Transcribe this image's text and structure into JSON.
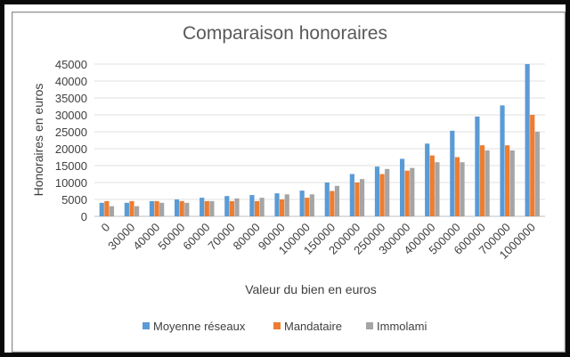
{
  "chart_data": {
    "type": "bar",
    "title": "Comparaison honoraires",
    "xlabel": "Valeur du bien en euros",
    "ylabel": "Honoraires en euros",
    "ylim": [
      0,
      45000
    ],
    "yticks": [
      0,
      5000,
      10000,
      15000,
      20000,
      25000,
      30000,
      35000,
      40000,
      45000
    ],
    "grid": true,
    "legend_position": "bottom",
    "categories": [
      "0",
      "30000",
      "40000",
      "50000",
      "60000",
      "70000",
      "80000",
      "90000",
      "100000",
      "150000",
      "200000",
      "250000",
      "300000",
      "400000",
      "500000",
      "600000",
      "700000",
      "1000000"
    ],
    "series": [
      {
        "name": "Moyenne réseaux",
        "color": "#5B9BD5",
        "values": [
          4000,
          4000,
          4500,
          5000,
          5500,
          6000,
          6300,
          6800,
          7600,
          10000,
          12500,
          14700,
          17000,
          21500,
          25300,
          29500,
          32800,
          45000
        ]
      },
      {
        "name": "Mandataire",
        "color": "#ED7D31",
        "values": [
          4500,
          4500,
          4500,
          4500,
          4500,
          4500,
          4500,
          5000,
          5500,
          7500,
          10000,
          12500,
          13500,
          18000,
          17500,
          21000,
          21000,
          30000
        ]
      },
      {
        "name": "Immolami",
        "color": "#A5A5A5",
        "values": [
          3000,
          3000,
          4000,
          4000,
          4500,
          5300,
          5500,
          6500,
          6500,
          9000,
          11000,
          14000,
          14300,
          16000,
          16000,
          19500,
          19500,
          25000
        ]
      }
    ]
  }
}
